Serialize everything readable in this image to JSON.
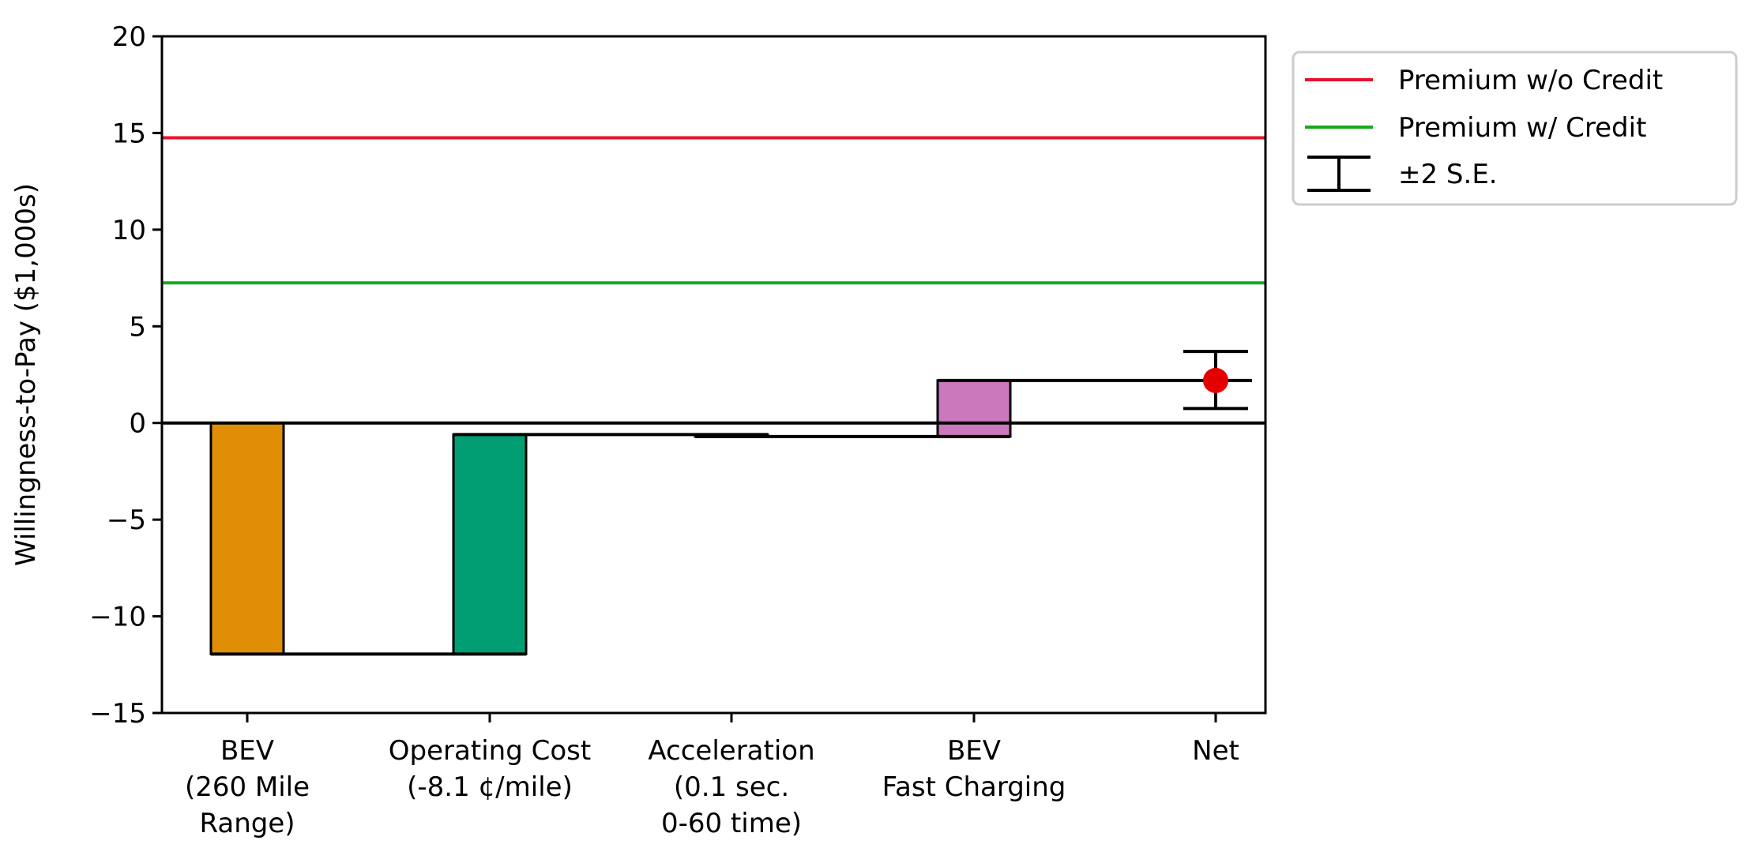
{
  "chart_data": {
    "type": "bar",
    "subtype": "waterfall",
    "title": "",
    "xlabel": "",
    "ylabel": "Willingness-to-Pay ($1,000s)",
    "ylim": [
      -15,
      20
    ],
    "yticks": [
      -15,
      -10,
      -5,
      0,
      5,
      10,
      15,
      20
    ],
    "ytick_labels": [
      "−15",
      "−10",
      "−5",
      "0",
      "5",
      "10",
      "15",
      "20"
    ],
    "grid": false,
    "legend_placement": "outside upper-right",
    "categories": [
      [
        "BEV",
        "(260 Mile",
        "Range)"
      ],
      [
        "Operating Cost",
        "(-8.1 ¢/mile)"
      ],
      [
        "Acceleration",
        "(0.1 sec.",
        "0-60 time)"
      ],
      [
        "BEV",
        "Fast Charging"
      ],
      [
        "Net"
      ]
    ],
    "steps": [
      {
        "start": 0,
        "end": -11.95,
        "color": "#df8e05"
      },
      {
        "start": -11.95,
        "end": -0.6,
        "color": "#029e73"
      },
      {
        "start": -0.6,
        "end": -0.7,
        "color": "#000000"
      },
      {
        "start": -0.7,
        "end": 2.2,
        "color": "#cc78bc"
      }
    ],
    "net": {
      "value": 2.2,
      "lower": 0.75,
      "upper": 3.7,
      "color": "#e50000"
    },
    "reference_lines": [
      {
        "name": "Premium w/o Credit",
        "value": 14.75,
        "color": "#e8112d"
      },
      {
        "name": "Premium w/ Credit",
        "value": 7.25,
        "color": "#17aa1f"
      }
    ],
    "zero_line": 0,
    "legend": [
      {
        "label": "Premium w/o Credit",
        "kind": "line",
        "color": "#e8112d"
      },
      {
        "label": "Premium w/ Credit",
        "kind": "line",
        "color": "#17aa1f"
      },
      {
        "label": "±2 S.E.",
        "kind": "errorbar",
        "color": "#000000"
      }
    ]
  }
}
